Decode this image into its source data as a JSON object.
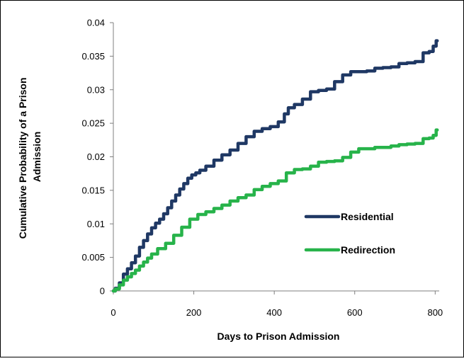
{
  "chart_data": {
    "type": "line",
    "title": "",
    "xlabel": "Days to Prison Admission",
    "ylabel": "Cumulative Probability of a Prison Admission",
    "ylabel_lines": [
      "Cumulative Probability of a Prison",
      "Admission"
    ],
    "xlim": [
      0,
      810
    ],
    "ylim": [
      0,
      0.04
    ],
    "x_ticks": [
      0,
      200,
      400,
      600,
      800
    ],
    "x_tick_labels": [
      "0",
      "200",
      "400",
      "600",
      "800"
    ],
    "y_ticks": [
      0,
      0.005,
      0.01,
      0.015,
      0.02,
      0.025,
      0.03,
      0.035,
      0.04
    ],
    "y_tick_labels": [
      "0",
      "0.005",
      "0.01",
      "0.015",
      "0.02",
      "0.025",
      "0.03",
      "0.035",
      "0.04"
    ],
    "grid": false,
    "legend_position": "right",
    "series": [
      {
        "name": "Residential",
        "color": "#1f3864",
        "x": [
          0,
          10,
          20,
          30,
          40,
          50,
          60,
          70,
          80,
          90,
          100,
          110,
          120,
          130,
          140,
          150,
          160,
          170,
          180,
          190,
          200,
          210,
          220,
          240,
          260,
          280,
          300,
          320,
          340,
          360,
          380,
          400,
          420,
          430,
          440,
          460,
          480,
          500,
          520,
          540,
          560,
          580,
          600,
          620,
          640,
          660,
          680,
          700,
          720,
          740,
          760,
          780,
          790,
          800,
          805
        ],
        "y": [
          0,
          0.0004,
          0.0012,
          0.0025,
          0.0033,
          0.0042,
          0.0052,
          0.0065,
          0.0075,
          0.0085,
          0.0094,
          0.0101,
          0.0107,
          0.0115,
          0.0124,
          0.0134,
          0.0143,
          0.0152,
          0.016,
          0.0168,
          0.0173,
          0.0176,
          0.018,
          0.0186,
          0.0195,
          0.0203,
          0.021,
          0.022,
          0.023,
          0.0238,
          0.0242,
          0.0245,
          0.0252,
          0.0264,
          0.0273,
          0.0278,
          0.0286,
          0.0297,
          0.0299,
          0.0301,
          0.0312,
          0.0322,
          0.0327,
          0.0327,
          0.0328,
          0.0332,
          0.0333,
          0.0334,
          0.0339,
          0.034,
          0.0342,
          0.0355,
          0.0357,
          0.0365,
          0.0373
        ]
      },
      {
        "name": "Redirection",
        "color": "#27b34a",
        "x": [
          0,
          10,
          20,
          30,
          40,
          50,
          60,
          70,
          80,
          90,
          100,
          120,
          140,
          160,
          180,
          200,
          220,
          240,
          260,
          280,
          300,
          320,
          340,
          360,
          380,
          400,
          420,
          440,
          460,
          480,
          500,
          520,
          540,
          560,
          580,
          600,
          620,
          640,
          660,
          680,
          700,
          720,
          740,
          760,
          780,
          790,
          800,
          805
        ],
        "y": [
          0,
          0.0003,
          0.0009,
          0.0016,
          0.0021,
          0.0026,
          0.0031,
          0.0037,
          0.0043,
          0.0049,
          0.0055,
          0.0063,
          0.0071,
          0.0083,
          0.0095,
          0.0107,
          0.0114,
          0.0118,
          0.0123,
          0.0128,
          0.0134,
          0.0139,
          0.0143,
          0.0151,
          0.0156,
          0.016,
          0.0164,
          0.0176,
          0.0181,
          0.0182,
          0.0186,
          0.0192,
          0.0193,
          0.0194,
          0.0199,
          0.0207,
          0.0212,
          0.0212,
          0.0214,
          0.0214,
          0.0216,
          0.0218,
          0.0219,
          0.022,
          0.0227,
          0.0228,
          0.0232,
          0.024
        ]
      }
    ]
  }
}
